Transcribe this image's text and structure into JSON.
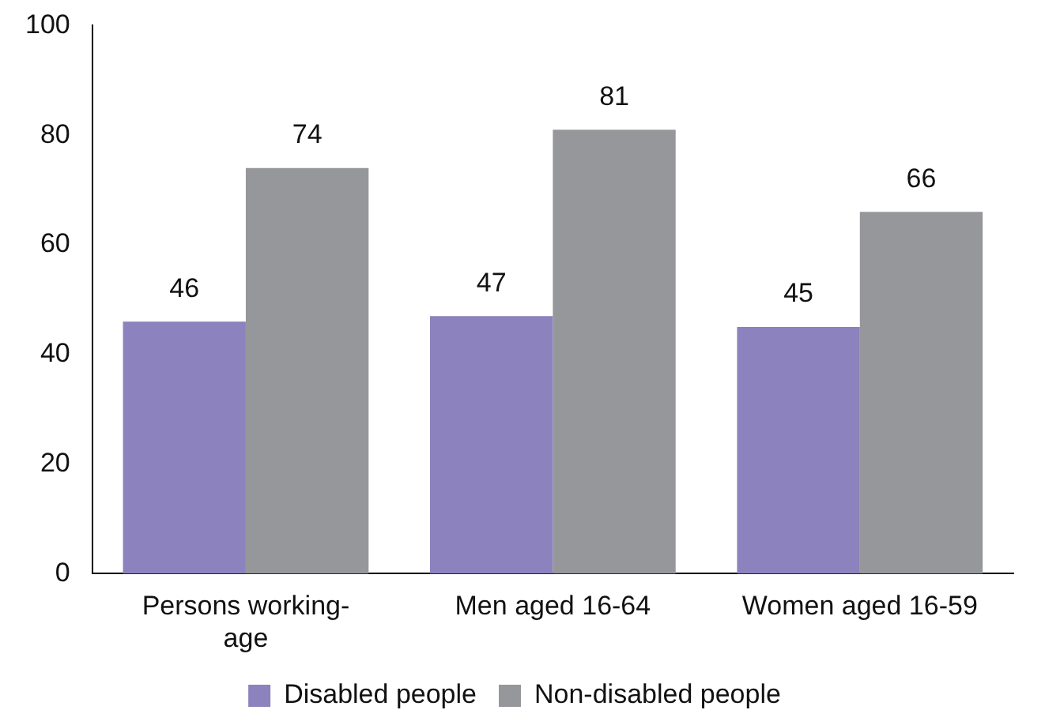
{
  "chart_data": {
    "type": "bar",
    "categories": [
      "Persons working-age",
      "Men aged 16-64",
      "Women aged 16-59"
    ],
    "series": [
      {
        "name": "Disabled people",
        "color": "#8c82bd",
        "values": [
          46,
          47,
          45
        ]
      },
      {
        "name": "Non-disabled people",
        "color": "#96979a",
        "values": [
          74,
          81,
          66
        ]
      }
    ],
    "ylim": [
      0,
      100
    ],
    "yticks": [
      0,
      20,
      40,
      60,
      80,
      100
    ],
    "grid": false,
    "legend": "bottom",
    "data_labels": true
  }
}
